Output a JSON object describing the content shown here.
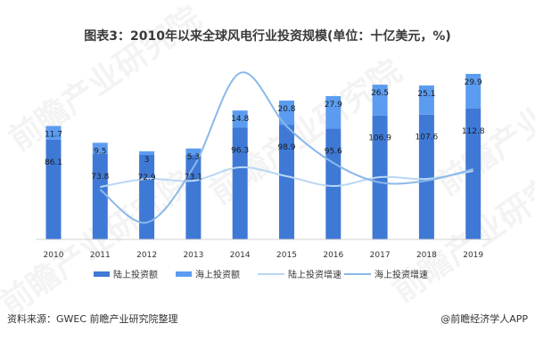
{
  "title": "图表3：2010年以来全球风电行业投资规模(单位：十亿美元，%)",
  "watermark": "前瞻产业研究院",
  "footer": {
    "source": "资料来源：GWEC 前瞻产业研究院整理",
    "brand": "@前瞻经济学人APP"
  },
  "chart_data": {
    "type": "bar",
    "categories": [
      "2010",
      "2011",
      "2012",
      "2013",
      "2014",
      "2015",
      "2016",
      "2017",
      "2018",
      "2019"
    ],
    "series": [
      {
        "name": "陆上投资额",
        "kind": "bar",
        "color": "#3f79d6",
        "values": [
          86.1,
          73.8,
          72.9,
          73.1,
          96.3,
          98.9,
          95.6,
          106.9,
          107.6,
          112.8
        ]
      },
      {
        "name": "海上投资额",
        "kind": "bar",
        "color": "#5b9cf0",
        "values": [
          11.7,
          9.5,
          3.0,
          5.3,
          14.8,
          20.8,
          27.9,
          26.5,
          25.1,
          29.9
        ]
      },
      {
        "name": "陆上投资增速",
        "kind": "line",
        "color": "#b9d7f2"
      },
      {
        "name": "海上投资增速",
        "kind": "line",
        "color": "#8ab8ea"
      }
    ],
    "stacked": true,
    "ylim": [
      0,
      145
    ],
    "grid": false,
    "legend_position": "bottom"
  }
}
